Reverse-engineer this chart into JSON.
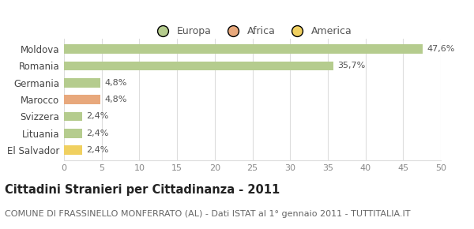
{
  "categories": [
    "Moldova",
    "Romania",
    "Germania",
    "Marocco",
    "Svizzera",
    "Lituania",
    "El Salvador"
  ],
  "values": [
    47.6,
    35.7,
    4.8,
    4.8,
    2.4,
    2.4,
    2.4
  ],
  "labels": [
    "47,6%",
    "35,7%",
    "4,8%",
    "4,8%",
    "2,4%",
    "2,4%",
    "2,4%"
  ],
  "colors": [
    "#b5cc8e",
    "#b5cc8e",
    "#b5cc8e",
    "#e8a87c",
    "#b5cc8e",
    "#b5cc8e",
    "#f0d060"
  ],
  "legend": [
    {
      "label": "Europa",
      "color": "#b5cc8e"
    },
    {
      "label": "Africa",
      "color": "#e8a87c"
    },
    {
      "label": "America",
      "color": "#f0d060"
    }
  ],
  "xlim": [
    0,
    50
  ],
  "xticks": [
    0,
    5,
    10,
    15,
    20,
    25,
    30,
    35,
    40,
    45,
    50
  ],
  "title": "Cittadini Stranieri per Cittadinanza - 2011",
  "subtitle": "COMUNE DI FRASSINELLO MONFERRATO (AL) - Dati ISTAT al 1° gennaio 2011 - TUTTITALIA.IT",
  "title_fontsize": 10.5,
  "subtitle_fontsize": 8,
  "background_color": "#ffffff",
  "grid_color": "#dddddd"
}
